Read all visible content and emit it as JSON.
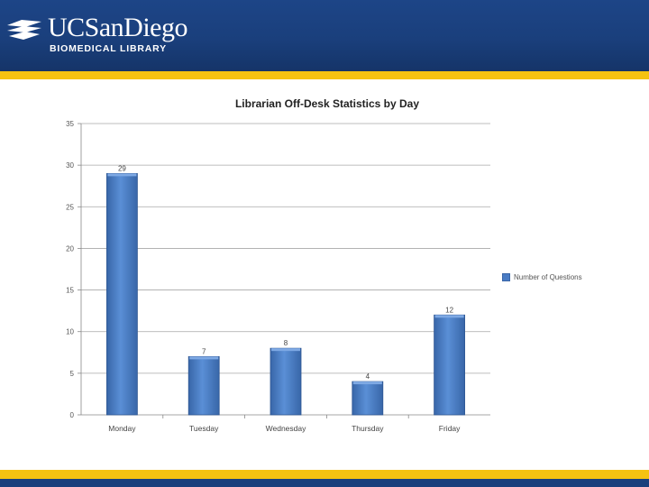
{
  "header": {
    "logo_name": "UCSanDiego",
    "logo_sub": "BIOMEDICAL LIBRARY",
    "icon": "uc-san-diego-trident-logo-icon",
    "colors": {
      "navy": "#1a3f7c",
      "gold": "#f5c211"
    }
  },
  "chart_data": {
    "type": "bar",
    "title": "Librarian Off-Desk Statistics by Day",
    "xlabel": "",
    "ylabel": "",
    "categories": [
      "Monday",
      "Tuesday",
      "Wednesday",
      "Thursday",
      "Friday"
    ],
    "series": [
      {
        "name": "Number of Questions",
        "values": [
          29,
          7,
          8,
          4,
          12
        ],
        "color": "#4a7cc4"
      }
    ],
    "ylim": [
      0,
      35
    ],
    "yticks": [
      0,
      5,
      10,
      15,
      20,
      25,
      30,
      35
    ],
    "grid": true,
    "data_labels": true,
    "legend": "right"
  }
}
